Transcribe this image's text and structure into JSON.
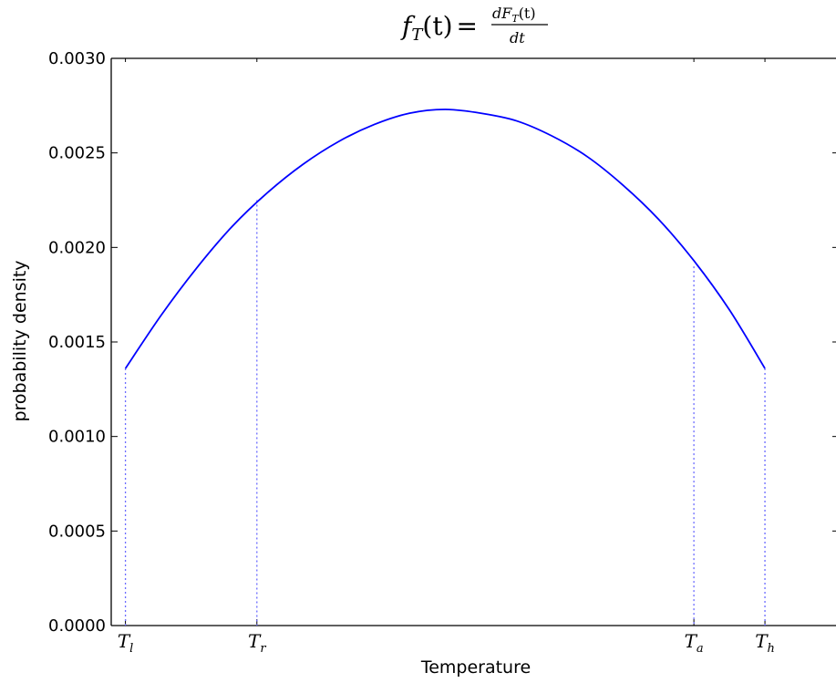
{
  "chart_data": {
    "type": "line",
    "title": {
      "lhs": "f",
      "lhs_sub": "T",
      "lhs_arg": "(t)",
      "equals": "=",
      "num": "dF",
      "num_sub": "T",
      "num_arg": "(t)",
      "den": "dt"
    },
    "xlabel": "Temperature",
    "ylabel": "probability density",
    "ylim": [
      0,
      0.003
    ],
    "xlim": [
      -0.02,
      1.0
    ],
    "yticks": [
      "0.0000",
      "0.0005",
      "0.0010",
      "0.0015",
      "0.0020",
      "0.0025",
      "0.0030"
    ],
    "ytick_values": [
      0,
      0.0005,
      0.001,
      0.0015,
      0.002,
      0.0025,
      0.003
    ],
    "xticks": [
      {
        "main": "T",
        "sub": "l",
        "x": 0.0
      },
      {
        "main": "T",
        "sub": "r",
        "x": 0.185
      },
      {
        "main": "T",
        "sub": "a",
        "x": 0.8
      },
      {
        "main": "T",
        "sub": "h",
        "x": 0.9
      }
    ],
    "grid": false,
    "series": [
      {
        "color": "#0000ff",
        "style": "solid",
        "x": [
          0.0,
          0.05,
          0.1,
          0.15,
          0.2,
          0.25,
          0.3,
          0.35,
          0.4,
          0.45,
          0.5,
          0.55,
          0.6,
          0.65,
          0.7,
          0.75,
          0.8,
          0.85,
          0.9
        ],
        "y": [
          0.00136,
          0.00164,
          0.00189,
          0.00211,
          0.00229,
          0.00244,
          0.00256,
          0.00265,
          0.00271,
          0.00273,
          0.00271,
          0.00267,
          0.00259,
          0.00248,
          0.00233,
          0.00215,
          0.00193,
          0.00167,
          0.00136
        ]
      }
    ],
    "vertical_markers": [
      {
        "x": 0.0,
        "y": 0.00136
      },
      {
        "x": 0.185,
        "y": 0.00225
      },
      {
        "x": 0.8,
        "y": 0.0019
      },
      {
        "x": 0.9,
        "y": 0.00136
      }
    ],
    "marker_color": "#6a6aff",
    "line_color": "#0000ff"
  }
}
